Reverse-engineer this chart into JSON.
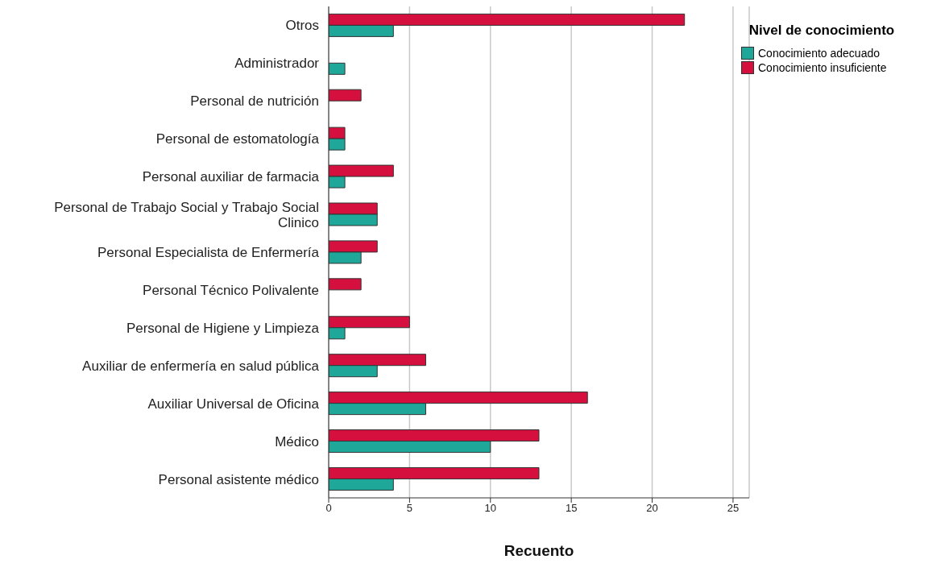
{
  "chart_data": {
    "type": "bar",
    "orientation": "horizontal",
    "xlabel": "Recuento",
    "legend_title": "Nivel de conocimiento",
    "legend": "top right",
    "grid": "x",
    "categories": [
      "Otros",
      "Administrador",
      "Personal de nutrición",
      "Personal de estomatología",
      "Personal auxiliar de farmacia",
      "Personal de Trabajo Social y Trabajo Social Clinico",
      "Personal Especialista de Enfermería",
      "Personal Técnico Polivalente",
      "Personal de Higiene y Limpieza",
      "Auxiliar de enfermería en salud pública",
      "Auxiliar Universal de Oficina",
      "Médico",
      "Personal asistente médico"
    ],
    "series": [
      {
        "name": "Conocimiento adecuado",
        "color": "#1fa89a",
        "values": [
          4,
          1,
          0,
          1,
          1,
          3,
          2,
          0,
          1,
          3,
          6,
          10,
          4
        ]
      },
      {
        "name": "Conocimiento insuficiente",
        "color": "#d6103e",
        "values": [
          22,
          0,
          2,
          1,
          4,
          3,
          3,
          2,
          5,
          6,
          16,
          13,
          13
        ]
      }
    ],
    "xlim": [
      0,
      26
    ],
    "xticks": [
      0,
      5,
      10,
      15,
      20,
      25
    ]
  }
}
